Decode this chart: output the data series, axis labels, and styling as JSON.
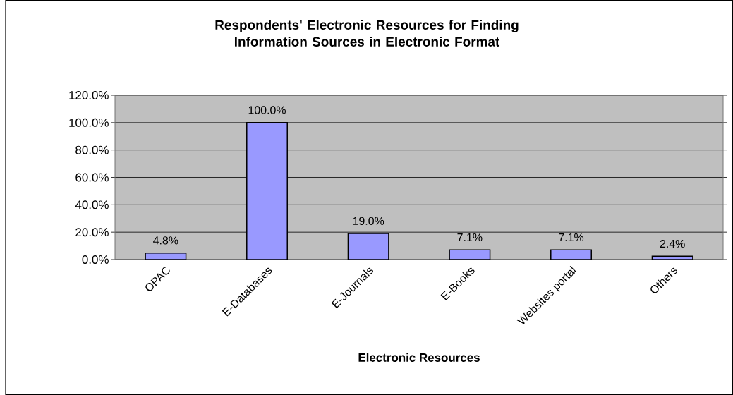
{
  "chart_data": {
    "type": "bar",
    "title": "Respondents' Electronic Resources for Finding Information Sources in Electronic Format",
    "xlabel": "Electronic Resources",
    "categories": [
      "OPAC",
      "E-Databases",
      "E-Journals",
      "E-Books",
      "Websites portal",
      "Others"
    ],
    "values": [
      4.8,
      100,
      19,
      7.1,
      7.1,
      2.4
    ],
    "value_labels": [
      "4.8%",
      "100.0%",
      "19.0%",
      "7.1%",
      "7.1%",
      "2.4%"
    ],
    "color": "#9999ff",
    "ylim": [
      0,
      120
    ],
    "yticks": [
      {
        "value": 0,
        "label": "0.0%"
      },
      {
        "value": 20,
        "label": "20.0%"
      },
      {
        "value": 40,
        "label": "40.0%"
      },
      {
        "value": 60,
        "label": "60.0%"
      },
      {
        "value": 80,
        "label": "80.0%"
      },
      {
        "value": 100,
        "label": "100.0%"
      },
      {
        "value": 120,
        "label": "120.0%"
      }
    ],
    "grid": "y"
  }
}
